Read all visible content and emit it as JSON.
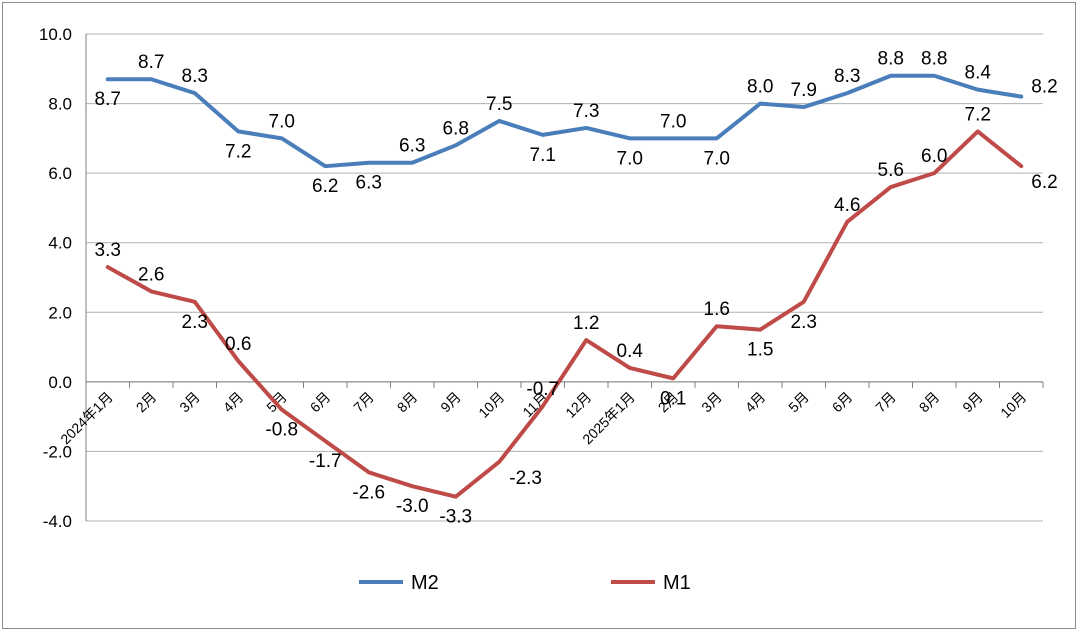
{
  "chart_data": {
    "type": "line",
    "categories": [
      "2024年1月",
      "2月",
      "3月",
      "4月",
      "5月",
      "6月",
      "7月",
      "8月",
      "9月",
      "10月",
      "11月",
      "12月",
      "2025年1月",
      "2月",
      "3月",
      "4月",
      "5月",
      "6月",
      "7月",
      "8月",
      "9月",
      "10月"
    ],
    "series": [
      {
        "name": "M2",
        "color": "#4a7ebb",
        "values": [
          8.7,
          8.7,
          8.3,
          7.2,
          7.0,
          6.2,
          6.3,
          6.3,
          6.8,
          7.5,
          7.1,
          7.3,
          7.0,
          7.0,
          7.0,
          8.0,
          7.9,
          8.3,
          8.8,
          8.8,
          8.4,
          8.2
        ],
        "labels": [
          "8.7",
          "8.7",
          "8.3",
          "7.2",
          "7.0",
          "6.2",
          "6.3",
          "6.3",
          "6.8",
          "7.5",
          "7.1",
          "7.3",
          "7.0",
          "7.0",
          "7.0",
          "8.0",
          "7.9",
          "8.3",
          "8.8",
          "8.8",
          "8.4",
          "8.2"
        ]
      },
      {
        "name": "M1",
        "color": "#be4b48",
        "values": [
          3.3,
          2.6,
          2.3,
          0.6,
          -0.8,
          -1.7,
          -2.6,
          -3.0,
          -3.3,
          -2.3,
          -0.7,
          1.2,
          0.4,
          0.1,
          1.6,
          1.5,
          2.3,
          4.6,
          5.6,
          6.0,
          7.2,
          6.2
        ],
        "labels": [
          "3.3",
          "2.6",
          "2.3",
          "0.6",
          "-0.8",
          "-1.7",
          "-2.6",
          "-3.0",
          "-3.3",
          "-2.3",
          "-0.7",
          "1.2",
          "0.4",
          "0.1",
          "1.6",
          "1.5",
          "2.3",
          "4.6",
          "5.6",
          "6.0",
          "7.2",
          "6.2"
        ]
      }
    ],
    "ylim": [
      -4.0,
      10.0
    ],
    "yticks": [
      "-4.0",
      "-2.0",
      "0.0",
      "2.0",
      "4.0",
      "6.0",
      "8.0",
      "10.0"
    ],
    "ytick_values": [
      -4,
      -2,
      0,
      2,
      4,
      6,
      8,
      10
    ],
    "grid": true,
    "legend_position": "bottom",
    "title": "",
    "xlabel": "",
    "ylabel": ""
  }
}
